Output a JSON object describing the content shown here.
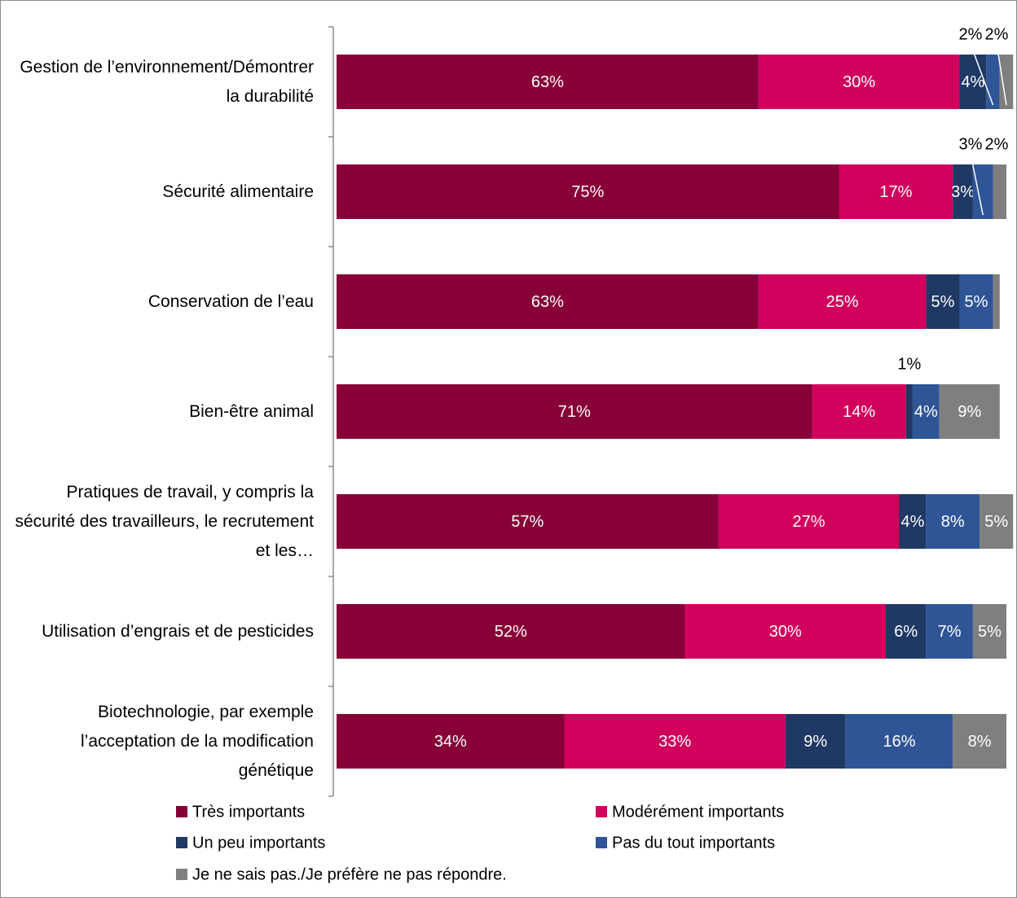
{
  "chart_data": {
    "type": "stacked-bar-horizontal",
    "categories": [
      "Gestion de l’environnement/Démontrer la durabilité",
      "Sécurité alimentaire",
      "Conservation de l’eau",
      "Bien-être animal",
      "Pratiques de travail, y compris la sécurité des travailleurs, le recrutement et les…",
      "Utilisation d’engrais et de pesticides",
      "Biotechnologie, par exemple l’acceptation de la modification génétique"
    ],
    "series": [
      {
        "name": "Très importants",
        "color": "#870037",
        "values": [
          63,
          75,
          63,
          71,
          57,
          52,
          34
        ],
        "value_labels": [
          "63%",
          "75%",
          "63%",
          "71%",
          "57%",
          "52%",
          "34%"
        ]
      },
      {
        "name": "Modérément importants",
        "color": "#d0005c",
        "values": [
          30,
          17,
          25,
          14,
          27,
          30,
          33
        ],
        "value_labels": [
          "30%",
          "17%",
          "25%",
          "14%",
          "27%",
          "30%",
          "33%"
        ]
      },
      {
        "name": "Un peu importants",
        "color": "#1f3864",
        "values": [
          4,
          3,
          5,
          1,
          4,
          6,
          9
        ],
        "value_labels": [
          "4%",
          "3%",
          "5%",
          "1%",
          "4%",
          "6%",
          "9%"
        ]
      },
      {
        "name": "Pas du tout importants",
        "color": "#2f5597",
        "values": [
          2,
          3,
          5,
          4,
          8,
          7,
          16
        ],
        "value_labels": [
          "2%",
          "3%",
          "5%",
          "4%",
          "8%",
          "7%",
          "16%"
        ]
      },
      {
        "name": "Je ne sais pas./Je préfère ne pas répondre.",
        "color": "#7f7f7f",
        "values": [
          2,
          2,
          1,
          9,
          5,
          5,
          8
        ],
        "value_labels": [
          "2%",
          "2%",
          null,
          "9%",
          "5%",
          "5%",
          "8%"
        ]
      }
    ],
    "xlim": [
      0,
      100
    ]
  }
}
